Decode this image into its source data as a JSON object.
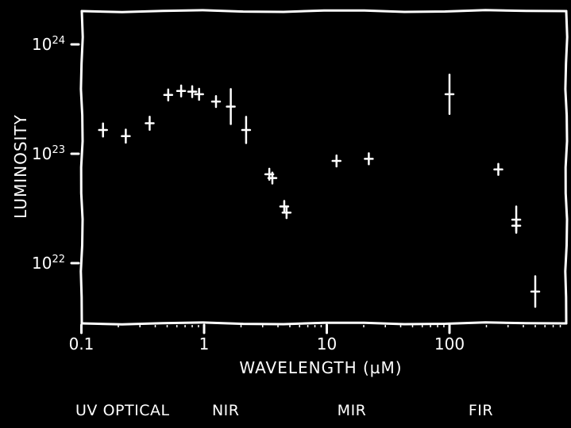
{
  "chart_data": {
    "type": "scatter",
    "xlabel": "WAVELENGTH (µM)",
    "ylabel": "LUMINOSITY",
    "x_scale": "log",
    "y_scale": "log",
    "xlim": [
      0.1,
      700
    ],
    "ylim": [
      3e+21,
      2e+24
    ],
    "x_ticks": [
      {
        "value": 0.1,
        "label": "0.1"
      },
      {
        "value": 1,
        "label": "1"
      },
      {
        "value": 10,
        "label": "10"
      },
      {
        "value": 100,
        "label": "100"
      }
    ],
    "y_ticks": [
      {
        "value": 1e+24,
        "base": "10",
        "exp": "24"
      },
      {
        "value": 1e+23,
        "base": "10",
        "exp": "23"
      },
      {
        "value": 1e+22,
        "base": "10",
        "exp": "22"
      }
    ],
    "grid": false,
    "background": "#000000",
    "color": "#ffffff",
    "series": [
      {
        "points": [
          {
            "x": 0.15,
            "y": 1.65e+23,
            "err": 0.06
          },
          {
            "x": 0.23,
            "y": 1.45e+23,
            "err": 0.06
          },
          {
            "x": 0.36,
            "y": 1.9e+23,
            "err": 0.06
          },
          {
            "x": 0.51,
            "y": 3.45e+23,
            "err": 0.05
          },
          {
            "x": 0.65,
            "y": 3.75e+23,
            "err": 0.05
          },
          {
            "x": 0.8,
            "y": 3.7e+23,
            "err": 0.05
          },
          {
            "x": 0.91,
            "y": 3.5e+23,
            "err": 0.05
          },
          {
            "x": 1.25,
            "y": 3e+23,
            "err": 0.05
          },
          {
            "x": 1.65,
            "y": 2.7e+23,
            "err": 0.16
          },
          {
            "x": 2.2,
            "y": 1.65e+23,
            "err": 0.12
          },
          {
            "x": 3.4,
            "y": 6.5e+22,
            "err": 0.05
          },
          {
            "x": 3.6,
            "y": 6e+22,
            "err": 0.05
          },
          {
            "x": 4.5,
            "y": 3.3e+22,
            "err": 0.05
          },
          {
            "x": 4.7,
            "y": 2.9e+22,
            "err": 0.05
          },
          {
            "x": 12,
            "y": 8.6e+22,
            "err": 0.05
          },
          {
            "x": 22,
            "y": 9e+22,
            "err": 0.05
          },
          {
            "x": 100,
            "y": 3.5e+23,
            "err": 0.18
          },
          {
            "x": 250,
            "y": 7.2e+22,
            "err": 0.05
          },
          {
            "x": 350,
            "y": 2.5e+22,
            "err": 0.12
          },
          {
            "x": 350,
            "y": 2.2e+22,
            "err": 0.05
          },
          {
            "x": 500,
            "y": 5.5e+21,
            "err": 0.14
          }
        ]
      }
    ],
    "bands": [
      {
        "label": "UV",
        "x": 0.11
      },
      {
        "label": "OPTICAL",
        "x": 0.28
      },
      {
        "label": "NIR",
        "x": 1.5
      },
      {
        "label": "MIR",
        "x": 16
      },
      {
        "label": "FIR",
        "x": 180
      }
    ]
  }
}
